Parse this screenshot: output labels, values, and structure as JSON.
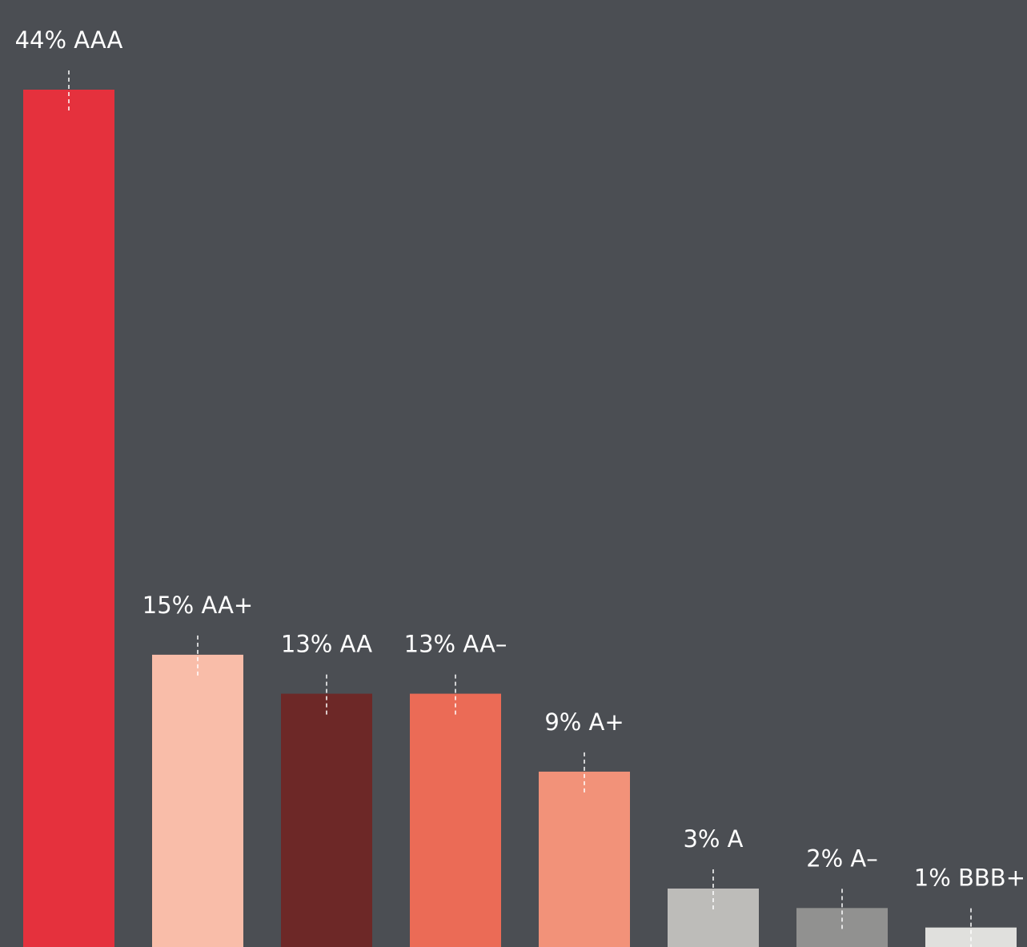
{
  "chart_data": {
    "type": "bar",
    "title": "",
    "xlabel": "",
    "ylabel": "",
    "ylim": [
      0,
      44
    ],
    "grid": false,
    "legend": "none",
    "categories": [
      "AAA",
      "AA+",
      "AA",
      "AA–",
      "A+",
      "A",
      "A–",
      "BBB+"
    ],
    "values": [
      44,
      15,
      13,
      13,
      9,
      3,
      2,
      1
    ],
    "labels": [
      "44% AAA",
      "15% AA+",
      "13% AA",
      "13% AA–",
      "9% A+",
      "3% A",
      "2% A–",
      "1% BBB+"
    ],
    "colors": [
      "#e5313d",
      "#f9bda9",
      "#6d2827",
      "#eb6b56",
      "#f29279",
      "#bdbcb9",
      "#919190",
      "#e0e0dd"
    ],
    "background": "#4b4e53",
    "label_color": "#ffffff"
  }
}
